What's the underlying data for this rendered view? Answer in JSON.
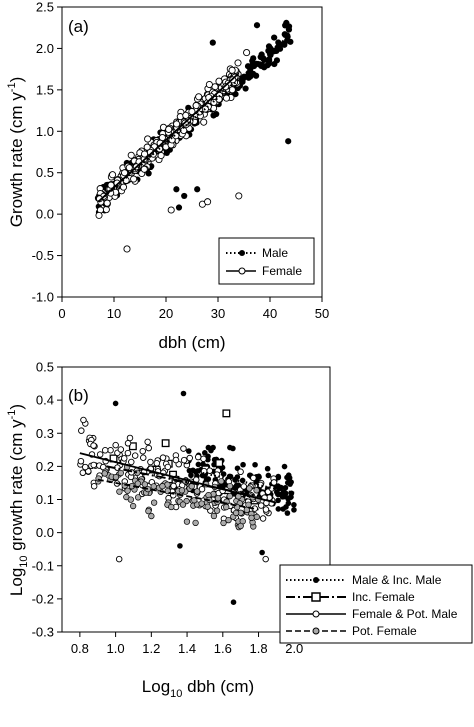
{
  "chart_data": [
    {
      "type": "scatter",
      "panel_label": "(a)",
      "xlabel": "dbh (cm)",
      "ylabel": "Growth rate (cm y",
      "ylabel_sup": "-1",
      "ylabel_close": ")",
      "xlim": [
        0,
        50
      ],
      "ylim": [
        -1.0,
        2.5
      ],
      "xticks": [
        "0",
        "10",
        "20",
        "30",
        "40",
        "50"
      ],
      "yticks": [
        "-1.0",
        "-0.5",
        "0.0",
        "0.5",
        "1.0",
        "1.5",
        "2.0",
        "2.5"
      ],
      "legend_position": "bottom-right",
      "series": [
        {
          "name": "Male",
          "marker": "filled-circle",
          "line": "dotted",
          "fit": [
            [
              7,
              0.15
            ],
            [
              44,
              2.17
            ]
          ],
          "outliers": [
            [
              43.5,
              0.88
            ],
            [
              37.5,
              2.28
            ],
            [
              29,
              2.07
            ],
            [
              22,
              0.3
            ],
            [
              23.5,
              0.22
            ],
            [
              26,
              0.3
            ],
            [
              22.5,
              0.08
            ]
          ]
        },
        {
          "name": "Female",
          "marker": "open-circle",
          "line": "solid",
          "fit": [
            [
              7,
              0.15
            ],
            [
              34,
              1.7
            ]
          ],
          "outliers": [
            [
              12.5,
              -0.42
            ],
            [
              34,
              0.22
            ],
            [
              35.5,
              1.95
            ],
            [
              21,
              0.05
            ],
            [
              27,
              0.12
            ],
            [
              28,
              0.15
            ]
          ]
        }
      ]
    },
    {
      "type": "scatter",
      "panel_label": "(b)",
      "xlabel_pre": "Log",
      "xlabel_sub": "10",
      "xlabel_post": " dbh (cm)",
      "ylabel_pre": "Log",
      "ylabel_sub": "10",
      "ylabel_post": " growth rate (cm y",
      "ylabel_sup": "-1",
      "ylabel_close": ")",
      "xlim": [
        0.7,
        2.2
      ],
      "ylim": [
        -0.3,
        0.5
      ],
      "xticks": [
        "0.8",
        "1.0",
        "1.2",
        "1.4",
        "1.6",
        "1.8",
        "2.0"
      ],
      "yticks": [
        "-0.3",
        "-0.2",
        "-0.1",
        "0.0",
        "0.1",
        "0.2",
        "0.3",
        "0.4",
        "0.5"
      ],
      "legend_position": "bottom-right",
      "series": [
        {
          "name": "Male & Inc. Male",
          "marker": "filled-circle",
          "line": "dotted",
          "fit": [
            [
              1.4,
              0.19
            ],
            [
              2.0,
              0.12
            ]
          ],
          "outliers": [
            [
              1.66,
              -0.21
            ],
            [
              1.38,
              0.42
            ],
            [
              1.0,
              0.39
            ],
            [
              1.36,
              -0.04
            ],
            [
              1.82,
              -0.06
            ]
          ]
        },
        {
          "name": "Inc. Female",
          "marker": "open-square",
          "line": "dash-dot",
          "fit": [
            [
              0.95,
              0.2
            ],
            [
              1.8,
              0.11
            ]
          ],
          "outliers": [
            [
              1.62,
              0.36
            ],
            [
              1.28,
              0.27
            ],
            [
              1.58,
              0.21
            ]
          ]
        },
        {
          "name": "Female & Pot. Male",
          "marker": "open-circle",
          "line": "solid",
          "fit": [
            [
              0.8,
              0.24
            ],
            [
              1.9,
              0.09
            ]
          ],
          "outliers": [
            [
              0.82,
              0.34
            ],
            [
              1.02,
              -0.08
            ],
            [
              1.84,
              -0.08
            ],
            [
              0.88,
              0.14
            ]
          ]
        },
        {
          "name": "Pot. Female",
          "marker": "grey-circle",
          "line": "dashed",
          "fit": [
            [
              0.9,
              0.16
            ],
            [
              1.8,
              0.07
            ]
          ],
          "outliers": [
            [
              1.2,
              0.05
            ],
            [
              1.7,
              0.02
            ]
          ]
        }
      ]
    }
  ]
}
